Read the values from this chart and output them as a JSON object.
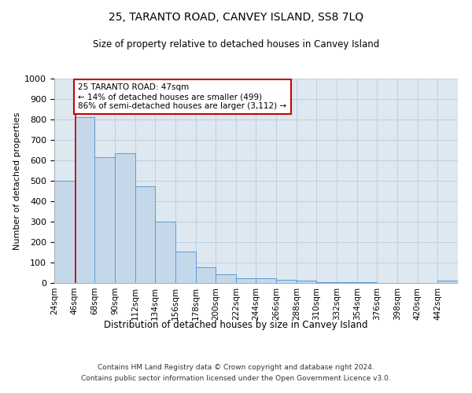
{
  "title": "25, TARANTO ROAD, CANVEY ISLAND, SS8 7LQ",
  "subtitle": "Size of property relative to detached houses in Canvey Island",
  "xlabel": "Distribution of detached houses by size in Canvey Island",
  "ylabel": "Number of detached properties",
  "footer_line1": "Contains HM Land Registry data © Crown copyright and database right 2024.",
  "footer_line2": "Contains public sector information licensed under the Open Government Licence v3.0.",
  "annotation_title": "25 TARANTO ROAD: 47sqm",
  "annotation_line1": "← 14% of detached houses are smaller (499)",
  "annotation_line2": "86% of semi-detached houses are larger (3,112) →",
  "marker_value": 47,
  "bar_left_edges": [
    24,
    46,
    68,
    90,
    112,
    134,
    156,
    178,
    200,
    222,
    244,
    266,
    288,
    310,
    332,
    354,
    376,
    398,
    420,
    442
  ],
  "bar_heights": [
    500,
    810,
    615,
    635,
    475,
    300,
    155,
    78,
    42,
    22,
    22,
    15,
    10,
    5,
    3,
    2,
    1,
    1,
    0,
    10
  ],
  "bar_color": "#c5d8ea",
  "bar_edge_color": "#5b9bd5",
  "marker_color": "#cc0000",
  "annotation_box_color": "#ffffff",
  "annotation_box_edge": "#cc0000",
  "grid_color": "#c0cfe0",
  "ylim": [
    0,
    1000
  ],
  "yticks": [
    0,
    100,
    200,
    300,
    400,
    500,
    600,
    700,
    800,
    900,
    1000
  ],
  "bg_color": "#dde8f0",
  "x_min": 24,
  "x_max": 464,
  "bin_width": 22
}
